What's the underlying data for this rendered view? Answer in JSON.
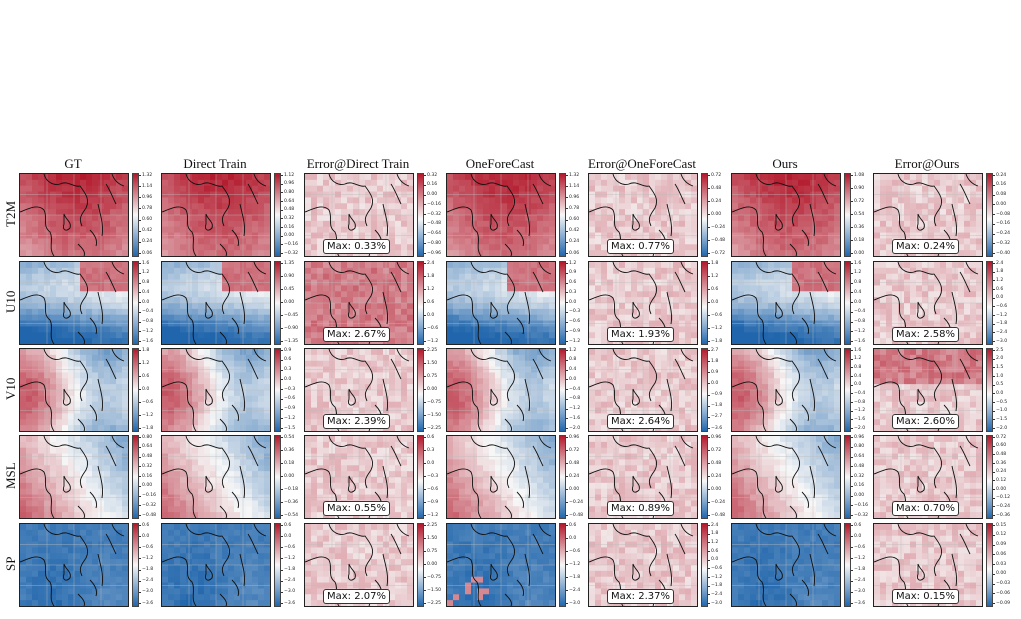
{
  "columns": [
    "GT",
    "Direct Train",
    "Error@Direct Train",
    "OneForeCast",
    "Error@OneForeCast",
    "Ours",
    "Error@Ours"
  ],
  "rows": [
    "T2M",
    "U10",
    "V10",
    "MSL",
    "SP"
  ],
  "max_errors": {
    "T2M": [
      "Max: 0.33%",
      "Max: 0.77%",
      "Max: 0.24%"
    ],
    "U10": [
      "Max: 2.67%",
      "Max: 1.93%",
      "Max: 2.58%"
    ],
    "V10": [
      "Max: 2.39%",
      "Max: 2.64%",
      "Max: 2.60%"
    ],
    "MSL": [
      "Max: 0.55%",
      "Max: 0.89%",
      "Max: 0.70%"
    ],
    "SP": [
      "Max: 2.07%",
      "Max: 2.37%",
      "Max: 0.15%"
    ]
  },
  "colorbar_ticks": {
    "T2M": [
      [
        "1.32",
        "1.14",
        "0.96",
        "0.78",
        "0.60",
        "0.42",
        "0.24",
        "0.06"
      ],
      [
        "1.12",
        "0.96",
        "0.80",
        "0.64",
        "0.48",
        "0.32",
        "0.16",
        "0.00",
        "−0.16",
        "−0.32"
      ],
      [
        "0.32",
        "0.16",
        "0.00",
        "−0.16",
        "−0.32",
        "−0.48",
        "−0.64",
        "−0.80",
        "−0.96"
      ],
      [
        "1.32",
        "1.14",
        "0.96",
        "0.78",
        "0.60",
        "0.42",
        "0.24",
        "0.06"
      ],
      [
        "0.72",
        "0.48",
        "0.24",
        "0.00",
        "−0.24",
        "−0.48",
        "−0.72"
      ],
      [
        "1.08",
        "0.90",
        "0.72",
        "0.54",
        "0.36",
        "0.18",
        "0.00"
      ],
      [
        "0.24",
        "0.16",
        "0.08",
        "0.00",
        "−0.08",
        "−0.16",
        "−0.24",
        "−0.32",
        "−0.40"
      ]
    ],
    "U10": [
      [
        "1.6",
        "1.2",
        "0.8",
        "0.4",
        "0.0",
        "−0.4",
        "−0.8",
        "−1.2",
        "−1.6"
      ],
      [
        "1.35",
        "0.90",
        "0.45",
        "0.00",
        "−0.45",
        "−0.90",
        "−1.35"
      ],
      [
        "2.4",
        "1.8",
        "1.2",
        "0.6",
        "0.0",
        "−0.6",
        "−1.2"
      ],
      [
        "1.2",
        "0.9",
        "0.6",
        "0.3",
        "0.0",
        "−0.3",
        "−0.6",
        "−0.9",
        "−1.2"
      ],
      [
        "1.8",
        "1.2",
        "0.6",
        "0.0",
        "−0.6",
        "−1.2",
        "−1.8"
      ],
      [
        "1.6",
        "1.2",
        "0.8",
        "0.4",
        "0.0",
        "−0.4",
        "−0.8",
        "−1.2",
        "−1.6"
      ],
      [
        "2.4",
        "1.8",
        "1.2",
        "0.6",
        "0.0",
        "−0.6",
        "−1.2",
        "−1.8",
        "−2.4",
        "−3.0"
      ]
    ],
    "V10": [
      [
        "1.8",
        "1.2",
        "0.6",
        "0.0",
        "−0.6",
        "−1.2",
        "−1.8"
      ],
      [
        "0.9",
        "0.6",
        "0.3",
        "0.0",
        "−0.3",
        "−0.6",
        "−0.9",
        "−1.2",
        "−1.5"
      ],
      [
        "2.25",
        "1.50",
        "0.75",
        "0.00",
        "−0.75",
        "−1.50",
        "−2.25"
      ],
      [
        "1.2",
        "0.8",
        "0.4",
        "0.0",
        "−0.4",
        "−0.8",
        "−1.2",
        "−1.6",
        "−2.0"
      ],
      [
        "2.7",
        "1.8",
        "0.9",
        "0.0",
        "−0.9",
        "−1.8",
        "−2.7",
        "−3.6"
      ],
      [
        "1.6",
        "1.2",
        "0.8",
        "0.4",
        "0.0",
        "−0.4",
        "−0.8",
        "−1.2",
        "−1.6",
        "−2.0"
      ],
      [
        "2.5",
        "2.0",
        "1.5",
        "1.0",
        "0.5",
        "0.0",
        "−0.5",
        "−1.0",
        "−1.5",
        "−2.0"
      ]
    ],
    "MSL": [
      [
        "0.80",
        "0.64",
        "0.48",
        "0.32",
        "0.16",
        "0.00",
        "−0.16",
        "−0.32",
        "−0.48"
      ],
      [
        "0.54",
        "0.36",
        "0.18",
        "0.00",
        "−0.18",
        "−0.36",
        "−0.54"
      ],
      [
        "0.6",
        "0.3",
        "0.0",
        "−0.3",
        "−0.6",
        "−0.9",
        "−1.2"
      ],
      [
        "0.96",
        "0.72",
        "0.48",
        "0.24",
        "0.00",
        "−0.24",
        "−0.48"
      ],
      [
        "0.96",
        "0.72",
        "0.48",
        "0.24",
        "0.00",
        "−0.24",
        "−0.48"
      ],
      [
        "0.96",
        "0.80",
        "0.64",
        "0.48",
        "0.32",
        "0.16",
        "0.00",
        "−0.16",
        "−0.32"
      ],
      [
        "0.72",
        "0.60",
        "0.48",
        "0.36",
        "0.24",
        "0.12",
        "0.00",
        "−0.12",
        "−0.24",
        "−0.36"
      ]
    ],
    "SP": [
      [
        "0.6",
        "0.0",
        "−0.6",
        "−1.2",
        "−1.8",
        "−2.4",
        "−3.0",
        "−3.6"
      ],
      [
        "0.6",
        "0.0",
        "−0.6",
        "−1.2",
        "−1.8",
        "−2.4",
        "−3.0",
        "−3.6"
      ],
      [
        "2.25",
        "1.50",
        "0.75",
        "0.00",
        "−0.75",
        "−1.50",
        "−2.25"
      ],
      [
        "0.6",
        "0.0",
        "−0.6",
        "−1.2",
        "−1.8",
        "−2.4",
        "−3.0"
      ],
      [
        "2.4",
        "1.8",
        "1.2",
        "0.6",
        "0.0",
        "−0.6",
        "−1.2",
        "−1.8",
        "−2.4",
        "−3.0"
      ],
      [
        "0.6",
        "0.0",
        "−0.6",
        "−1.2",
        "−1.8",
        "−2.4",
        "−3.0",
        "−3.6"
      ],
      [
        "0.15",
        "0.12",
        "0.09",
        "0.06",
        "0.03",
        "0.00",
        "−0.03",
        "−0.06",
        "−0.09"
      ]
    ]
  },
  "colors": {
    "positive": "#b2182b",
    "negative": "#2166ac",
    "neutral": "#f7f7f7",
    "coast": "#111111"
  }
}
